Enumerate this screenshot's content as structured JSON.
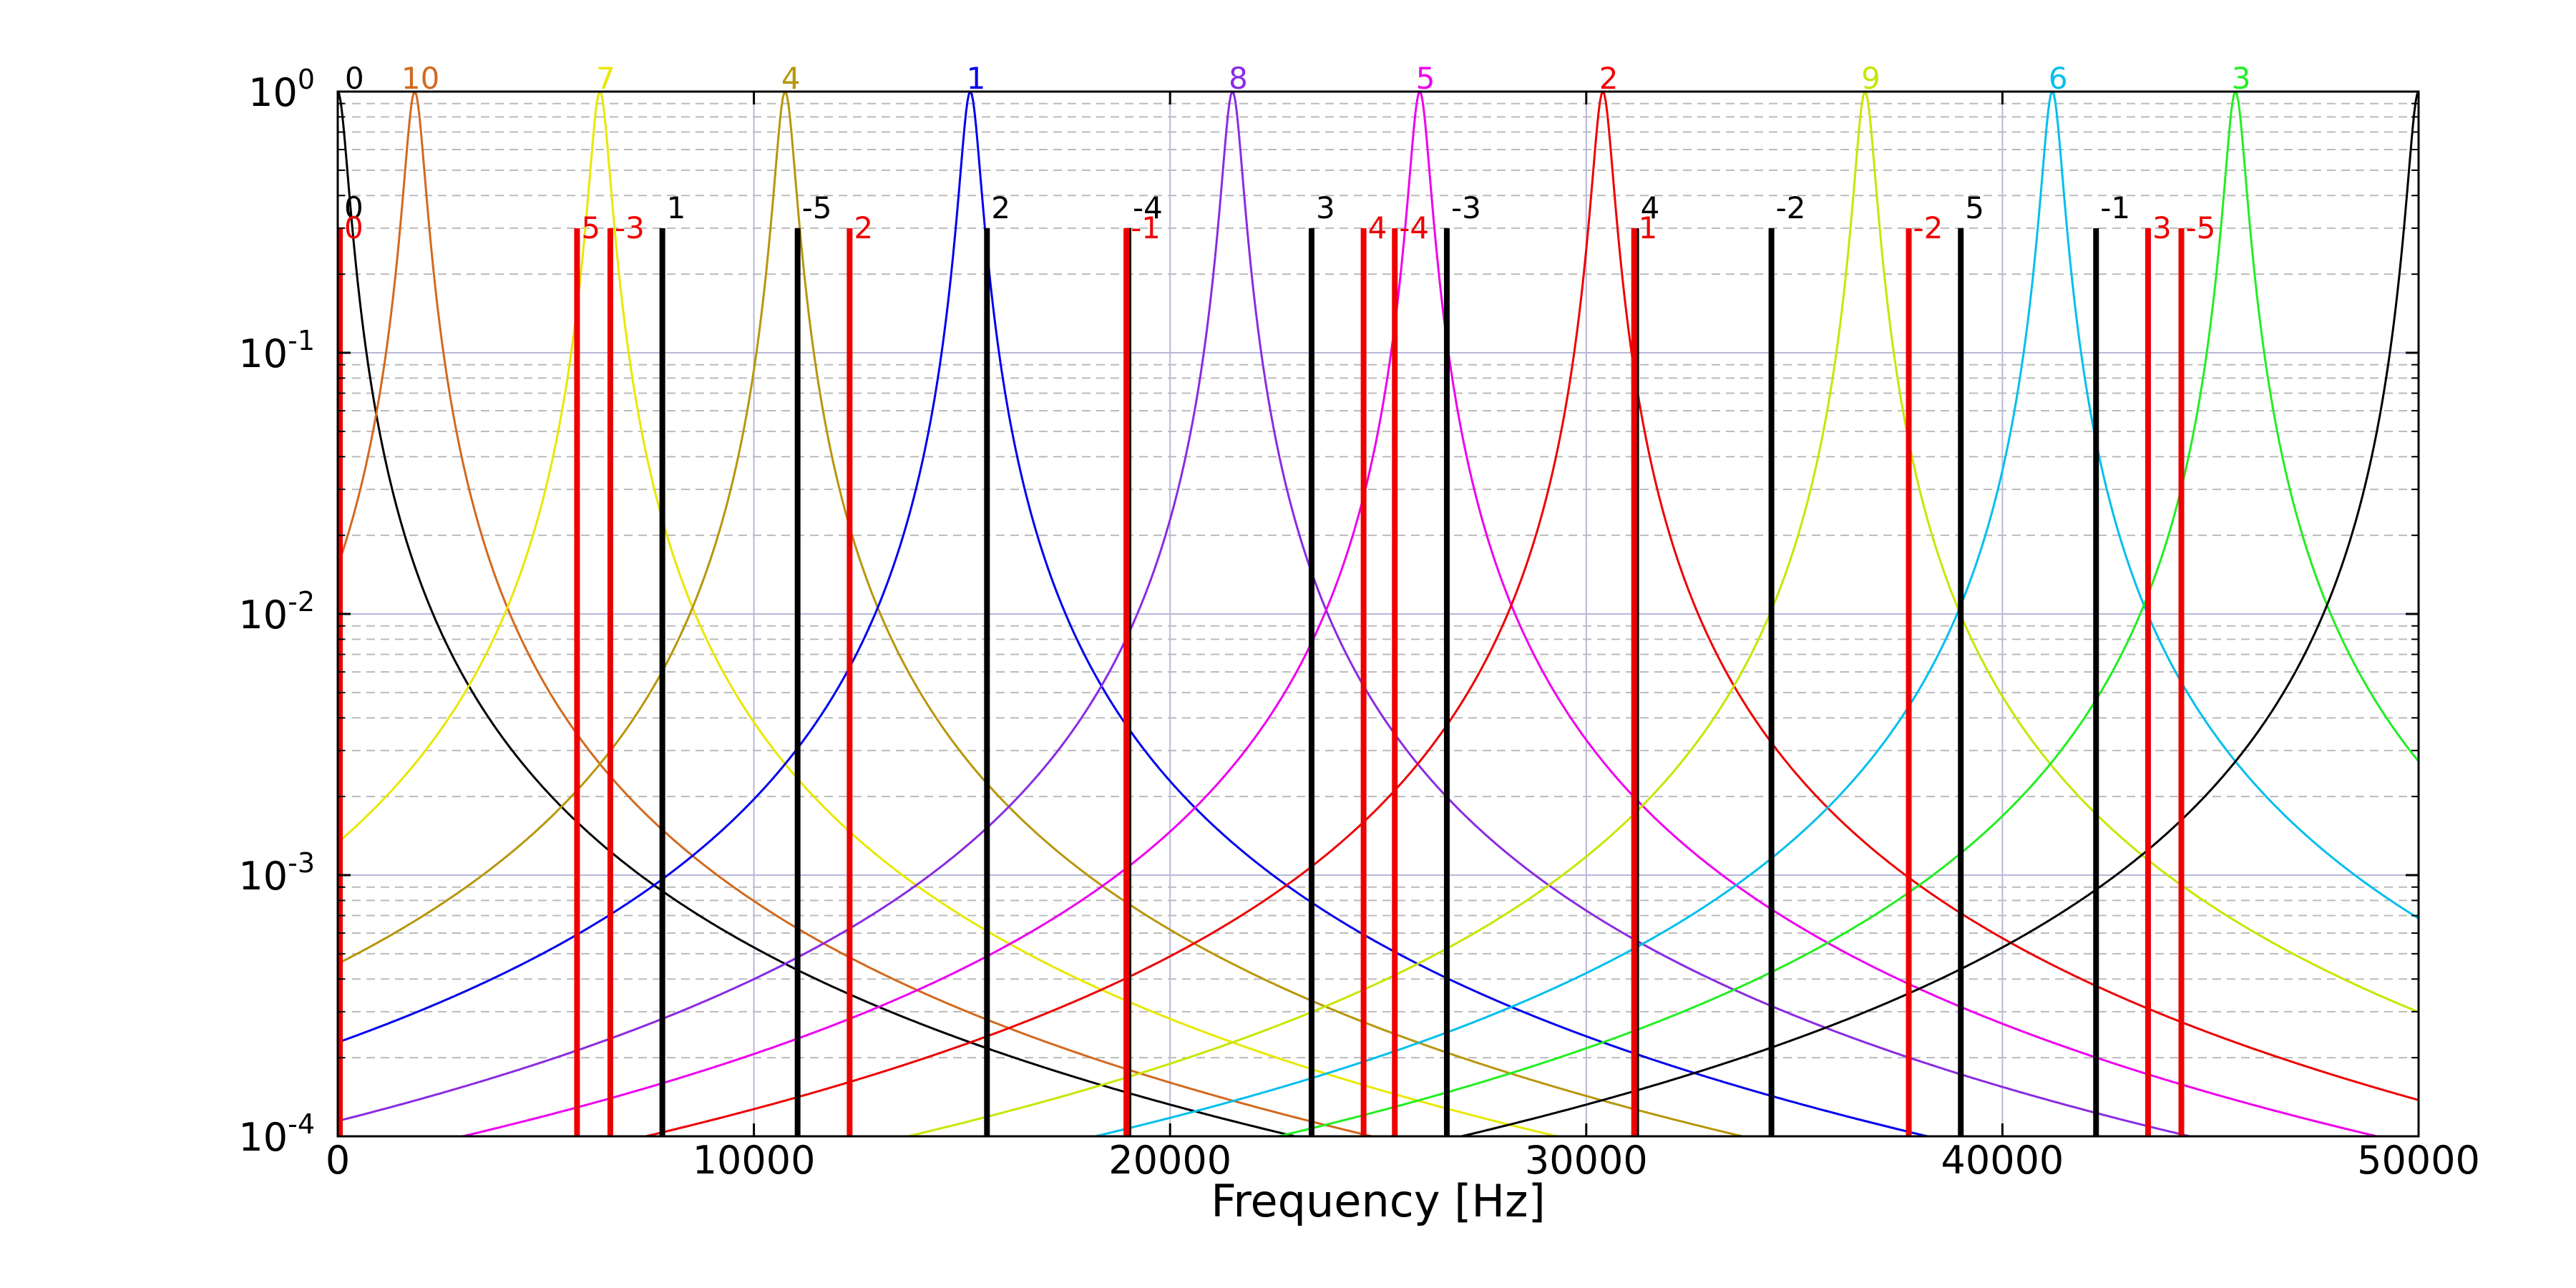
{
  "chart_data": {
    "type": "line",
    "title": "",
    "xlabel": "Frequency [Hz]",
    "ylabel": "",
    "xlim": [
      0,
      50000
    ],
    "ylim": [
      0.0001,
      1
    ],
    "yscale": "log",
    "x_ticks": [
      {
        "value": 0,
        "label": "0"
      },
      {
        "value": 10000,
        "label": "10000"
      },
      {
        "value": 20000,
        "label": "20000"
      },
      {
        "value": 30000,
        "label": "30000"
      },
      {
        "value": 40000,
        "label": "40000"
      },
      {
        "value": 50000,
        "label": "50000"
      }
    ],
    "y_ticks": [
      {
        "value": 1,
        "base": "10",
        "exp": "0"
      },
      {
        "value": 0.1,
        "base": "10",
        "exp": "-1"
      },
      {
        "value": 0.01,
        "base": "10",
        "exp": "-2"
      },
      {
        "value": 0.001,
        "base": "10",
        "exp": "-3"
      },
      {
        "value": 0.0001,
        "base": "10",
        "exp": "-4"
      }
    ],
    "grid": {
      "major": true,
      "minor_dashed": true
    },
    "peaks": [
      {
        "label": "0",
        "x": 0,
        "color": "#000000"
      },
      {
        "label": "10",
        "x": 1850,
        "color": "#d2691e"
      },
      {
        "label": "7",
        "x": 6300,
        "color": "#e8e800"
      },
      {
        "label": "4",
        "x": 10750,
        "color": "#b8960b"
      },
      {
        "label": "1",
        "x": 15200,
        "color": "#0000ee"
      },
      {
        "label": "8",
        "x": 21500,
        "color": "#8a2be2"
      },
      {
        "label": "5",
        "x": 26000,
        "color": "#ee00ee"
      },
      {
        "label": "2",
        "x": 30400,
        "color": "#ee0000"
      },
      {
        "label": "9",
        "x": 36700,
        "color": "#c8e600"
      },
      {
        "label": "6",
        "x": 41200,
        "color": "#00bfee"
      },
      {
        "label": "3",
        "x": 45600,
        "color": "#22ee22"
      },
      {
        "label": "",
        "x": 50000,
        "color": "#000000"
      }
    ],
    "bars": {
      "value": 0.3,
      "series": [
        {
          "name": "black",
          "color": "#000000",
          "points": [
            {
              "label": "0",
              "x": 0
            },
            {
              "label": "1",
              "x": 7800
            },
            {
              "label": "-5",
              "x": 11050
            },
            {
              "label": "2",
              "x": 15600
            },
            {
              "label": "-4",
              "x": 19000
            },
            {
              "label": "3",
              "x": 23400
            },
            {
              "label": "-3",
              "x": 26650
            },
            {
              "label": "4",
              "x": 31200
            },
            {
              "label": "-2",
              "x": 34450
            },
            {
              "label": "5",
              "x": 39000
            },
            {
              "label": "-1",
              "x": 42250
            }
          ]
        },
        {
          "name": "red",
          "color": "#ee0000",
          "points": [
            {
              "label": "0",
              "x": 0
            },
            {
              "label": "5",
              "x": 5750
            },
            {
              "label": "-3",
              "x": 6550
            },
            {
              "label": "2",
              "x": 12300
            },
            {
              "label": "-1",
              "x": 18950
            },
            {
              "label": "4",
              "x": 24650
            },
            {
              "label": "-4",
              "x": 25400
            },
            {
              "label": "1",
              "x": 31150
            },
            {
              "label": "-2",
              "x": 37750
            },
            {
              "label": "3",
              "x": 43500
            },
            {
              "label": "-5",
              "x": 44300
            }
          ]
        }
      ]
    }
  }
}
